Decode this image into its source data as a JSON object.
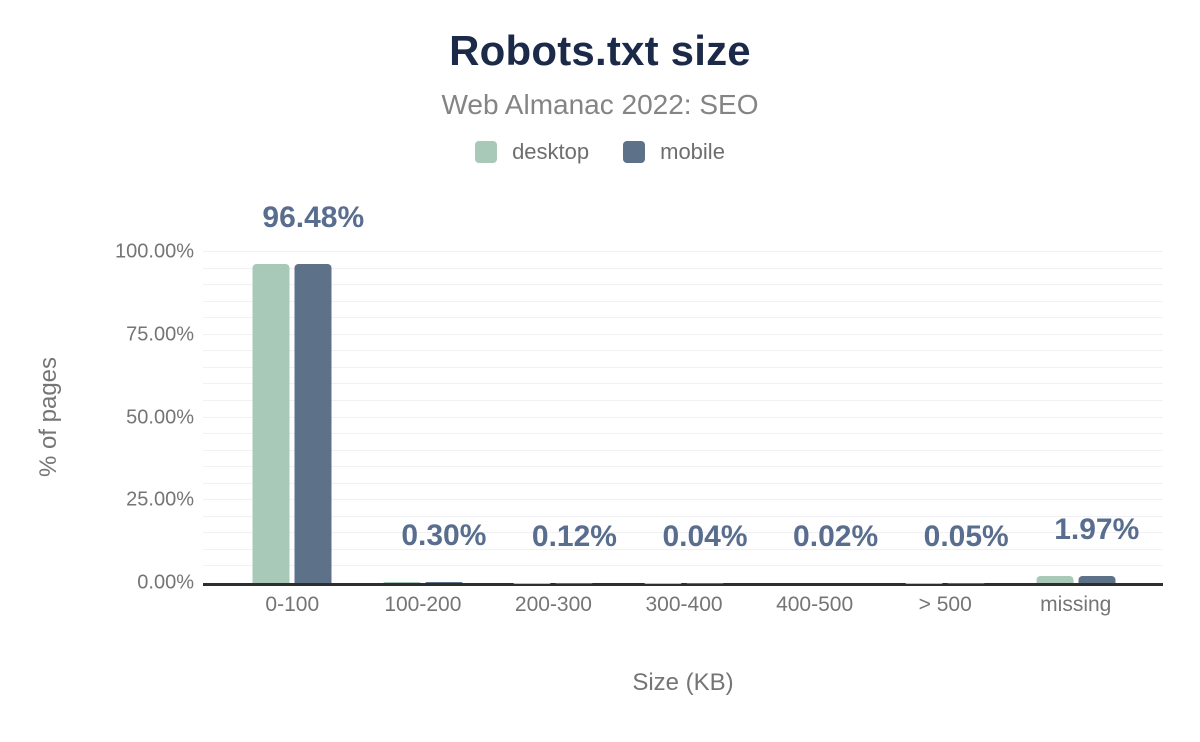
{
  "chart_data": {
    "type": "bar",
    "title": "Robots.txt size",
    "subtitle": "Web Almanac 2022: SEO",
    "categories": [
      "0-100",
      "100-200",
      "200-300",
      "300-400",
      "400-500",
      "> 500",
      "missing"
    ],
    "series": [
      {
        "name": "desktop",
        "color": "#a8c9b7",
        "values": [
          96.48,
          0.3,
          0.12,
          0.04,
          0.02,
          0.05,
          1.97
        ]
      },
      {
        "name": "mobile",
        "color": "#5d7189",
        "values": [
          96.48,
          0.3,
          0.12,
          0.04,
          0.02,
          0.05,
          1.97
        ]
      }
    ],
    "value_labels": [
      "96.48%",
      "0.30%",
      "0.12%",
      "0.04%",
      "0.02%",
      "0.05%",
      "1.97%"
    ],
    "value_label_color": "#596e8f",
    "xlabel": "Size (KB)",
    "ylabel": "% of pages",
    "ylim": [
      0,
      100
    ],
    "yticks": [
      {
        "value": 0,
        "label": "0.00%"
      },
      {
        "value": 25,
        "label": "25.00%"
      },
      {
        "value": 50,
        "label": "50.00%"
      },
      {
        "value": 75,
        "label": "75.00%"
      },
      {
        "value": 100,
        "label": "100.00%"
      }
    ],
    "grid": {
      "step": 5,
      "color": "#f1f1f3",
      "visible": true
    },
    "legend_position": "top",
    "axis_color": "#2e2e2e",
    "title_color": "#1b2a49",
    "text_color": "#757575",
    "background_color": "#ffffff"
  }
}
